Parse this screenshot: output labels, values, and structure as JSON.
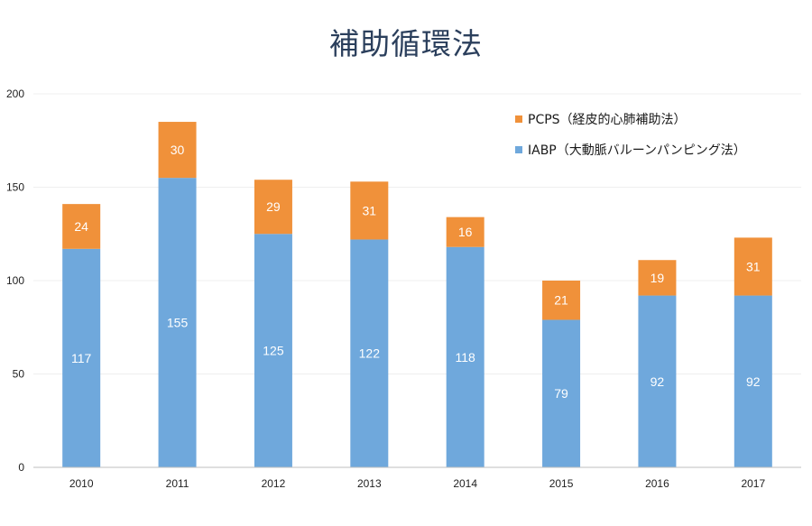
{
  "chart_data": {
    "type": "bar",
    "stacked": true,
    "title": "補助循環法",
    "xlabel": "",
    "ylabel": "",
    "categories": [
      "2010",
      "2011",
      "2012",
      "2013",
      "2014",
      "2015",
      "2016",
      "2017"
    ],
    "ylim": [
      0,
      200
    ],
    "yticks": [
      0,
      50,
      100,
      150,
      200
    ],
    "grid": true,
    "legend_position": "top-right",
    "series": [
      {
        "name": "IABP（大動脈バルーンパンピング法）",
        "values": [
          117,
          155,
          125,
          122,
          118,
          79,
          92,
          92
        ],
        "color": "#6fa8dc"
      },
      {
        "name": "PCPS（経皮的心肺補助法）",
        "values": [
          24,
          30,
          29,
          31,
          16,
          21,
          19,
          31
        ],
        "color": "#f0913a"
      }
    ]
  }
}
